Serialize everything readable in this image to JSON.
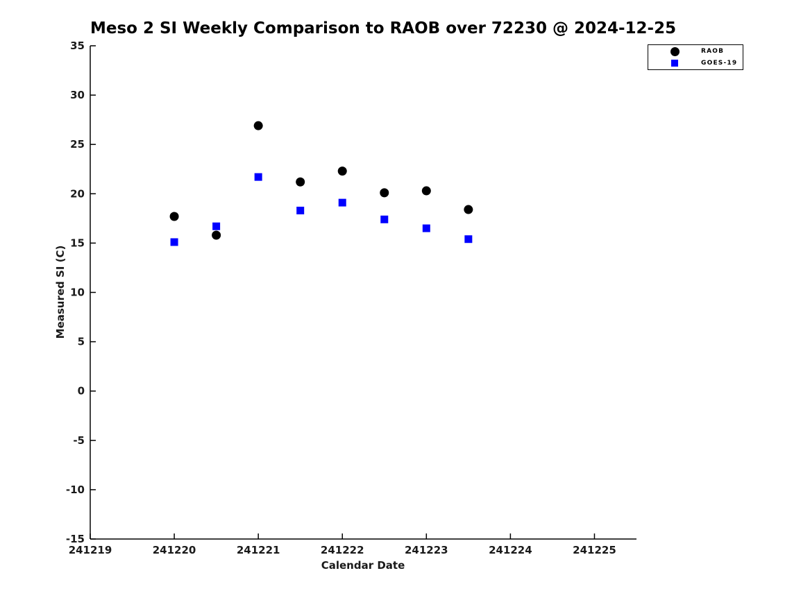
{
  "chart_data": {
    "type": "scatter",
    "title": "Meso 2 SI Weekly Comparison to RAOB over 72230 @ 2024-12-25",
    "xlabel": "Calendar Date",
    "ylabel": "Measured SI (C)",
    "xlim": [
      241219,
      241225.5
    ],
    "ylim": [
      -15,
      35
    ],
    "x_ticks": [
      241219,
      241220,
      241221,
      241222,
      241223,
      241224,
      241225
    ],
    "y_ticks": [
      35,
      30,
      25,
      20,
      15,
      10,
      5,
      0,
      -5,
      -10,
      -15
    ],
    "grid": false,
    "legend_position": "top-right",
    "axis_color": "#000000",
    "tick_label_color": "#1a1a1a",
    "series": [
      {
        "name": "RAOB",
        "marker": "circle",
        "color": "#000000",
        "x": [
          241220,
          241220.5,
          241221,
          241221.5,
          241222,
          241222.5,
          241223,
          241223.5
        ],
        "y": [
          17.7,
          15.8,
          26.9,
          21.2,
          22.3,
          20.1,
          20.3,
          18.4
        ]
      },
      {
        "name": "GOES-19",
        "marker": "square",
        "color": "#0000ff",
        "x": [
          241220,
          241220.5,
          241221,
          241221.5,
          241222,
          241222.5,
          241223,
          241223.5
        ],
        "y": [
          15.1,
          16.7,
          21.7,
          18.3,
          19.1,
          17.4,
          16.5,
          15.4
        ]
      }
    ]
  }
}
